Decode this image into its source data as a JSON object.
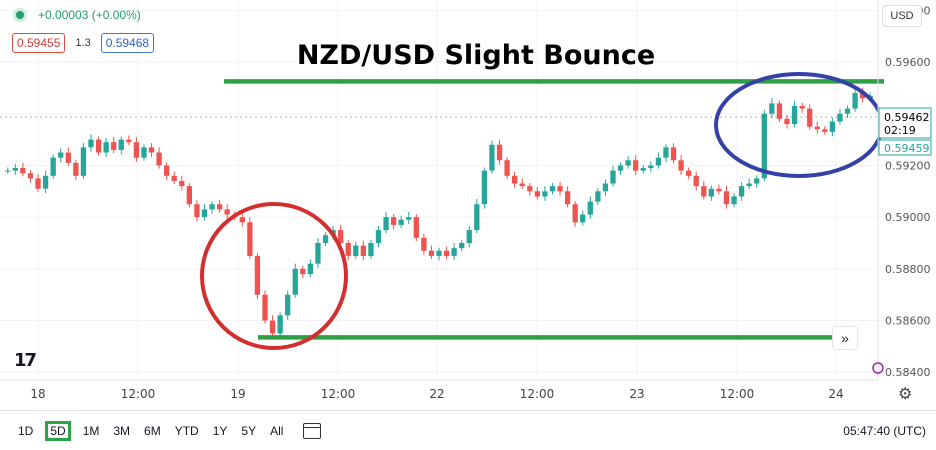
{
  "legend": {
    "change": "+0.00003 (+0.00%)",
    "sell_price": "0.59455",
    "spread": "1.3",
    "buy_price": "0.59468"
  },
  "currency_button": "USD",
  "toolbar": {
    "ranges": [
      "1D",
      "5D",
      "1M",
      "3M",
      "6M",
      "YTD",
      "1Y",
      "5Y",
      "All"
    ],
    "active_range": "5D",
    "clock": "05:47:40 (UTC)"
  },
  "colors": {
    "up": "#26a69a",
    "down": "#ef5350",
    "support_resistance": "#2ea043",
    "red_circle": "#d32f2f",
    "blue_circle": "#3442a8",
    "price_label": "#26a69a"
  },
  "chart_data": {
    "type": "line",
    "title": "NZD/USD Slight Bounce",
    "x_ticks": [
      "18",
      "12:00",
      "19",
      "12:00",
      "22",
      "12:00",
      "23",
      "12:00",
      "24"
    ],
    "y_ticks": [
      "0.59800",
      "0.59600",
      "0.59400",
      "0.59200",
      "0.59000",
      "0.58800",
      "0.58600",
      "0.58400"
    ],
    "ylim": [
      0.5837,
      0.5984
    ],
    "current_price": "0.59462",
    "countdown": "02:19",
    "last_bid": "0.59459",
    "series": [
      {
        "values": [
          0.5918,
          0.5919,
          0.5917,
          0.5915,
          0.5911,
          0.5916,
          0.5923,
          0.5925,
          0.5921,
          0.5916,
          0.5927,
          0.593,
          0.5925,
          0.5929,
          0.5926,
          0.593,
          0.5929,
          0.5923,
          0.5927,
          0.5925,
          0.592,
          0.5916,
          0.5914,
          0.5912,
          0.5905,
          0.59,
          0.5903,
          0.5905,
          0.5903,
          0.5901,
          0.59,
          0.5898,
          0.5885,
          0.587,
          0.586,
          0.5855,
          0.5862,
          0.587,
          0.588,
          0.5878,
          0.5882,
          0.589,
          0.5893,
          0.5895,
          0.589,
          0.5885,
          0.5889,
          0.5885,
          0.589,
          0.5895,
          0.59,
          0.5897,
          0.5899,
          0.59,
          0.5892,
          0.5887,
          0.5885,
          0.5887,
          0.5885,
          0.5888,
          0.589,
          0.5895,
          0.5905,
          0.5918,
          0.5928,
          0.5922,
          0.5916,
          0.5913,
          0.5912,
          0.591,
          0.5908,
          0.591,
          0.5912,
          0.591,
          0.5905,
          0.5898,
          0.5901,
          0.5906,
          0.591,
          0.5913,
          0.5918,
          0.592,
          0.5922,
          0.5918,
          0.5919,
          0.592,
          0.5923,
          0.5927,
          0.5922,
          0.5918,
          0.5916,
          0.5912,
          0.5908,
          0.5911,
          0.591,
          0.5905,
          0.5908,
          0.5912,
          0.5913,
          0.5915,
          0.594,
          0.5944,
          0.5938,
          0.5936,
          0.5943,
          0.5942,
          0.5935,
          0.5934,
          0.5933,
          0.5937,
          0.594,
          0.5942,
          0.5948,
          0.5946,
          0.5947
        ]
      }
    ],
    "annotations": [
      {
        "type": "hline",
        "label": "resistance",
        "y": 0.59525
      },
      {
        "type": "hline",
        "label": "support",
        "y": 0.58535
      },
      {
        "type": "circle",
        "label": "bottom-circle"
      },
      {
        "type": "ellipse",
        "label": "top-ellipse"
      }
    ],
    "grid": true,
    "legend": "none"
  }
}
